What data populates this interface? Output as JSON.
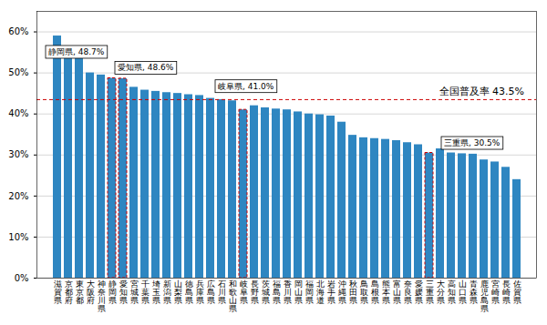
{
  "chart_data": {
    "type": "bar",
    "categories": [
      "滋賀県",
      "京都府",
      "東京都",
      "大阪府",
      "神奈川県",
      "静岡県",
      "愛知県",
      "宮城県",
      "千葉県",
      "埼玉県",
      "新潟県",
      "山梨県",
      "徳島県",
      "兵庫県",
      "広島県",
      "石川県",
      "和歌山県",
      "岐阜県",
      "長野県",
      "茨城県",
      "福島県",
      "香川県",
      "岡山県",
      "福岡県",
      "北海道",
      "岩手県",
      "沖縄県",
      "秋田県",
      "鳥取県",
      "島根県",
      "熊本県",
      "富山県",
      "奈良県",
      "愛媛県",
      "三重県",
      "大分県",
      "高知県",
      "山口県",
      "青森県",
      "鹿児島県",
      "宮崎県",
      "長崎県",
      "佐賀県"
    ],
    "values": [
      59.0,
      54.5,
      53.5,
      50.0,
      49.5,
      48.7,
      48.6,
      46.5,
      45.8,
      45.5,
      45.2,
      45.0,
      44.7,
      44.5,
      43.8,
      43.5,
      43.2,
      41.0,
      42.0,
      41.5,
      41.2,
      41.0,
      40.5,
      40.0,
      39.8,
      39.5,
      38.0,
      34.8,
      34.2,
      34.0,
      33.8,
      33.5,
      33.0,
      32.5,
      30.5,
      31.5,
      30.5,
      30.3,
      30.2,
      28.8,
      28.3,
      27.0,
      24.0
    ],
    "color": "#2E86C1",
    "ylim": [
      0,
      65
    ],
    "yticks": [
      {
        "value": 0,
        "label": "0%"
      },
      {
        "value": 10,
        "label": "10%"
      },
      {
        "value": 20,
        "label": "20%"
      },
      {
        "value": 30,
        "label": "30%"
      },
      {
        "value": 40,
        "label": "40%"
      },
      {
        "value": 50,
        "label": "50%"
      },
      {
        "value": 60,
        "label": "60%"
      }
    ],
    "grid": true,
    "annotations": [
      {
        "text": "静岡県, 48.7%",
        "category": "静岡県"
      },
      {
        "text": "愛知県, 48.6%",
        "category": "愛知県"
      },
      {
        "text": "岐阜県, 41.0%",
        "category": "岐阜県"
      },
      {
        "text": "三重県, 30.5%",
        "category": "三重県"
      }
    ],
    "reference_line": {
      "value": 43.5,
      "label": "全国普及率 43.5%",
      "color": "#CC0000"
    }
  }
}
